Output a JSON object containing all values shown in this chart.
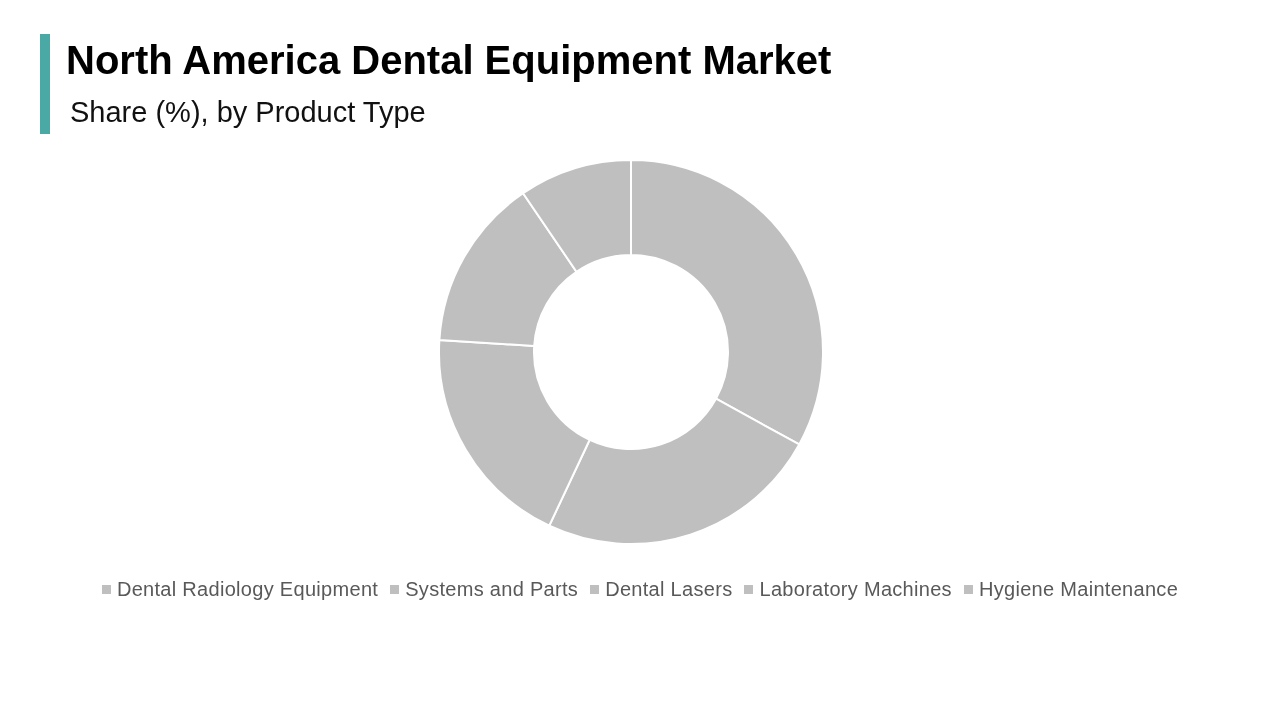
{
  "chart_data": {
    "type": "donut",
    "title": "North America Dental Equipment Market",
    "subtitle": "Share (%), by Product Type",
    "categories": [
      "Dental Radiology Equipment",
      "Systems and Parts",
      "Dental Lasers",
      "Laboratory Machines",
      "Hygiene Maintenance"
    ],
    "values": [
      33,
      24,
      19,
      14.5,
      9.5
    ],
    "colors": [
      "#bfbfbf",
      "#bfbfbf",
      "#bfbfbf",
      "#bfbfbf",
      "#bfbfbf"
    ],
    "legend": "bottom"
  }
}
